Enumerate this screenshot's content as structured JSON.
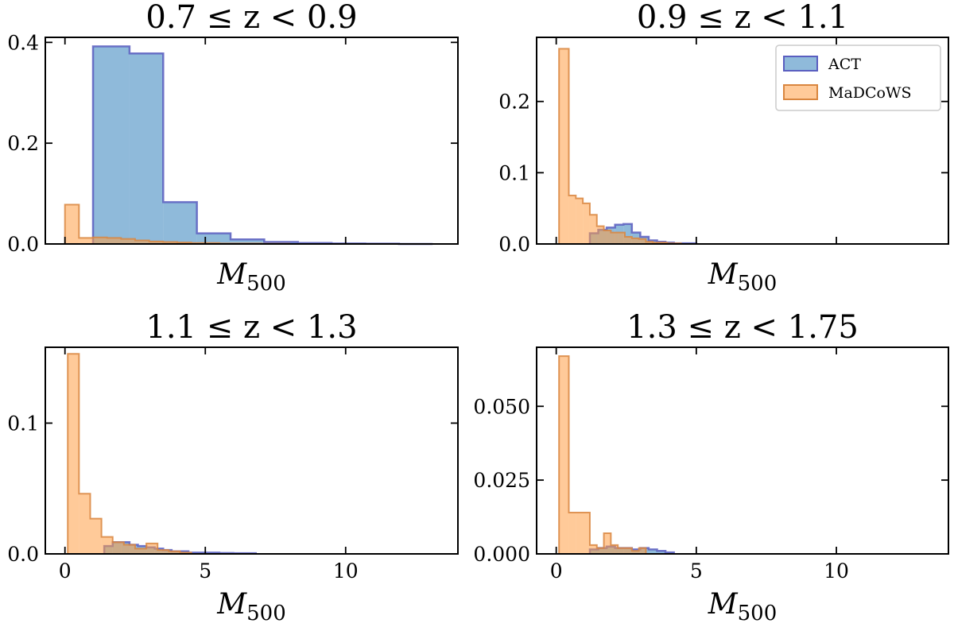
{
  "colors": {
    "act_fill": "#4a8fc4",
    "act_edge": "#5a5ec0",
    "madcows_fill": "#ff9e45",
    "madcows_edge": "#d9863f",
    "axis": "#000000"
  },
  "legend": {
    "entries": [
      "ACT",
      "MaDCoWS"
    ]
  },
  "chart_data": [
    {
      "type": "bar",
      "title": "0.7 ≤ z < 0.9",
      "xlabel": "M500",
      "xlabel_main": "M",
      "xlabel_sub": "500",
      "xlim": [
        -0.7,
        14
      ],
      "ylim": [
        0,
        0.41
      ],
      "xticks": [
        0,
        5,
        10
      ],
      "yticks": [
        0.0,
        0.2,
        0.4
      ],
      "yticklabels": [
        "0.0",
        "0.2",
        "0.4"
      ],
      "series": [
        {
          "name": "ACT",
          "edges": [
            1.0,
            2.3,
            3.5,
            4.7,
            5.9,
            7.1,
            8.3,
            9.5,
            10.7,
            11.9,
            13.1
          ],
          "values": [
            0.392,
            0.378,
            0.083,
            0.021,
            0.009,
            0.004,
            0.002,
            0.001,
            0.0005,
            0.0
          ]
        },
        {
          "name": "MaDCoWS",
          "edges": [
            0.0,
            0.5,
            1.0,
            1.5,
            2.0,
            2.5,
            3.0,
            3.5,
            4.0,
            4.5,
            5.0,
            5.5,
            6.0,
            6.5,
            7.0,
            7.5,
            8.0
          ],
          "values": [
            0.078,
            0.012,
            0.013,
            0.012,
            0.01,
            0.007,
            0.005,
            0.004,
            0.003,
            0.002,
            0.002,
            0.001,
            0.001,
            0.001,
            0.0005,
            0.0005
          ]
        }
      ]
    },
    {
      "type": "bar",
      "title": "0.9 ≤ z < 1.1",
      "xlabel": "M500",
      "xlabel_main": "M",
      "xlabel_sub": "500",
      "xlim": [
        -0.7,
        14
      ],
      "ylim": [
        0,
        0.29
      ],
      "xticks": [
        0,
        5,
        10
      ],
      "yticks": [
        0.0,
        0.1,
        0.2
      ],
      "yticklabels": [
        "0.0",
        "0.1",
        "0.2"
      ],
      "series": [
        {
          "name": "ACT",
          "edges": [
            1.2,
            1.5,
            1.8,
            2.1,
            2.4,
            2.7,
            3.0,
            3.3,
            3.6,
            3.9,
            4.2,
            4.5,
            5.0
          ],
          "values": [
            0.015,
            0.02,
            0.023,
            0.027,
            0.028,
            0.016,
            0.01,
            0.005,
            0.003,
            0.002,
            0.001,
            0.001
          ]
        },
        {
          "name": "MaDCoWS",
          "edges": [
            0.1,
            0.45,
            0.7,
            0.95,
            1.2,
            1.45,
            1.7,
            1.95,
            2.2,
            2.45,
            2.7,
            2.95,
            3.2,
            3.45,
            3.7,
            3.95,
            4.2,
            4.45
          ],
          "values": [
            0.274,
            0.068,
            0.064,
            0.057,
            0.041,
            0.025,
            0.019,
            0.016,
            0.016,
            0.01,
            0.008,
            0.007,
            0.003,
            0.002,
            0.002,
            0.001,
            0.001
          ]
        }
      ]
    },
    {
      "type": "bar",
      "title": "1.1 ≤ z < 1.3",
      "xlabel": "M500",
      "xlabel_main": "M",
      "xlabel_sub": "500",
      "xlim": [
        -0.7,
        14
      ],
      "ylim": [
        0,
        0.158
      ],
      "xticks": [
        0,
        5,
        10
      ],
      "yticks": [
        0.0,
        0.1
      ],
      "yticklabels": [
        "0.0",
        "0.1"
      ],
      "series": [
        {
          "name": "ACT",
          "edges": [
            1.4,
            1.7,
            2.0,
            2.3,
            2.6,
            2.9,
            3.2,
            3.5,
            3.8,
            4.1,
            4.4,
            4.7,
            5.0,
            5.5,
            6.0,
            6.8
          ],
          "values": [
            0.006,
            0.009,
            0.009,
            0.007,
            0.006,
            0.005,
            0.004,
            0.003,
            0.002,
            0.002,
            0.001,
            0.001,
            0.001,
            0.0007,
            0.0005
          ]
        },
        {
          "name": "MaDCoWS",
          "edges": [
            0.1,
            0.5,
            0.9,
            1.3,
            1.7,
            2.1,
            2.5,
            2.9,
            3.3,
            3.7,
            4.1,
            4.5
          ],
          "values": [
            0.153,
            0.046,
            0.027,
            0.013,
            0.009,
            0.007,
            0.004,
            0.008,
            0.003,
            0.002,
            0.001
          ]
        }
      ]
    },
    {
      "type": "bar",
      "title": "1.3 ≤ z < 1.75",
      "xlabel": "M500",
      "xlabel_main": "M",
      "xlabel_sub": "500",
      "xlim": [
        -0.7,
        14
      ],
      "ylim": [
        0,
        0.07
      ],
      "xticks": [
        0,
        5,
        10
      ],
      "yticks": [
        0.0,
        0.025,
        0.05
      ],
      "yticklabels": [
        "0.000",
        "0.025",
        "0.050"
      ],
      "series": [
        {
          "name": "ACT",
          "edges": [
            1.2,
            1.5,
            1.8,
            2.1,
            2.4,
            2.7,
            3.0,
            3.3,
            3.6,
            3.9,
            4.2
          ],
          "values": [
            0.0015,
            0.002,
            0.0025,
            0.002,
            0.002,
            0.0015,
            0.002,
            0.0015,
            0.001,
            0.0005
          ]
        },
        {
          "name": "MaDCoWS",
          "edges": [
            0.1,
            0.45,
            0.7,
            1.2,
            1.45,
            1.7,
            1.95,
            2.2,
            2.45,
            2.7,
            2.95,
            3.2
          ],
          "values": [
            0.067,
            0.014,
            0.014,
            0.003,
            0.002,
            0.007,
            0.003,
            0.002,
            0.002,
            0.001,
            0.002
          ]
        }
      ]
    }
  ]
}
